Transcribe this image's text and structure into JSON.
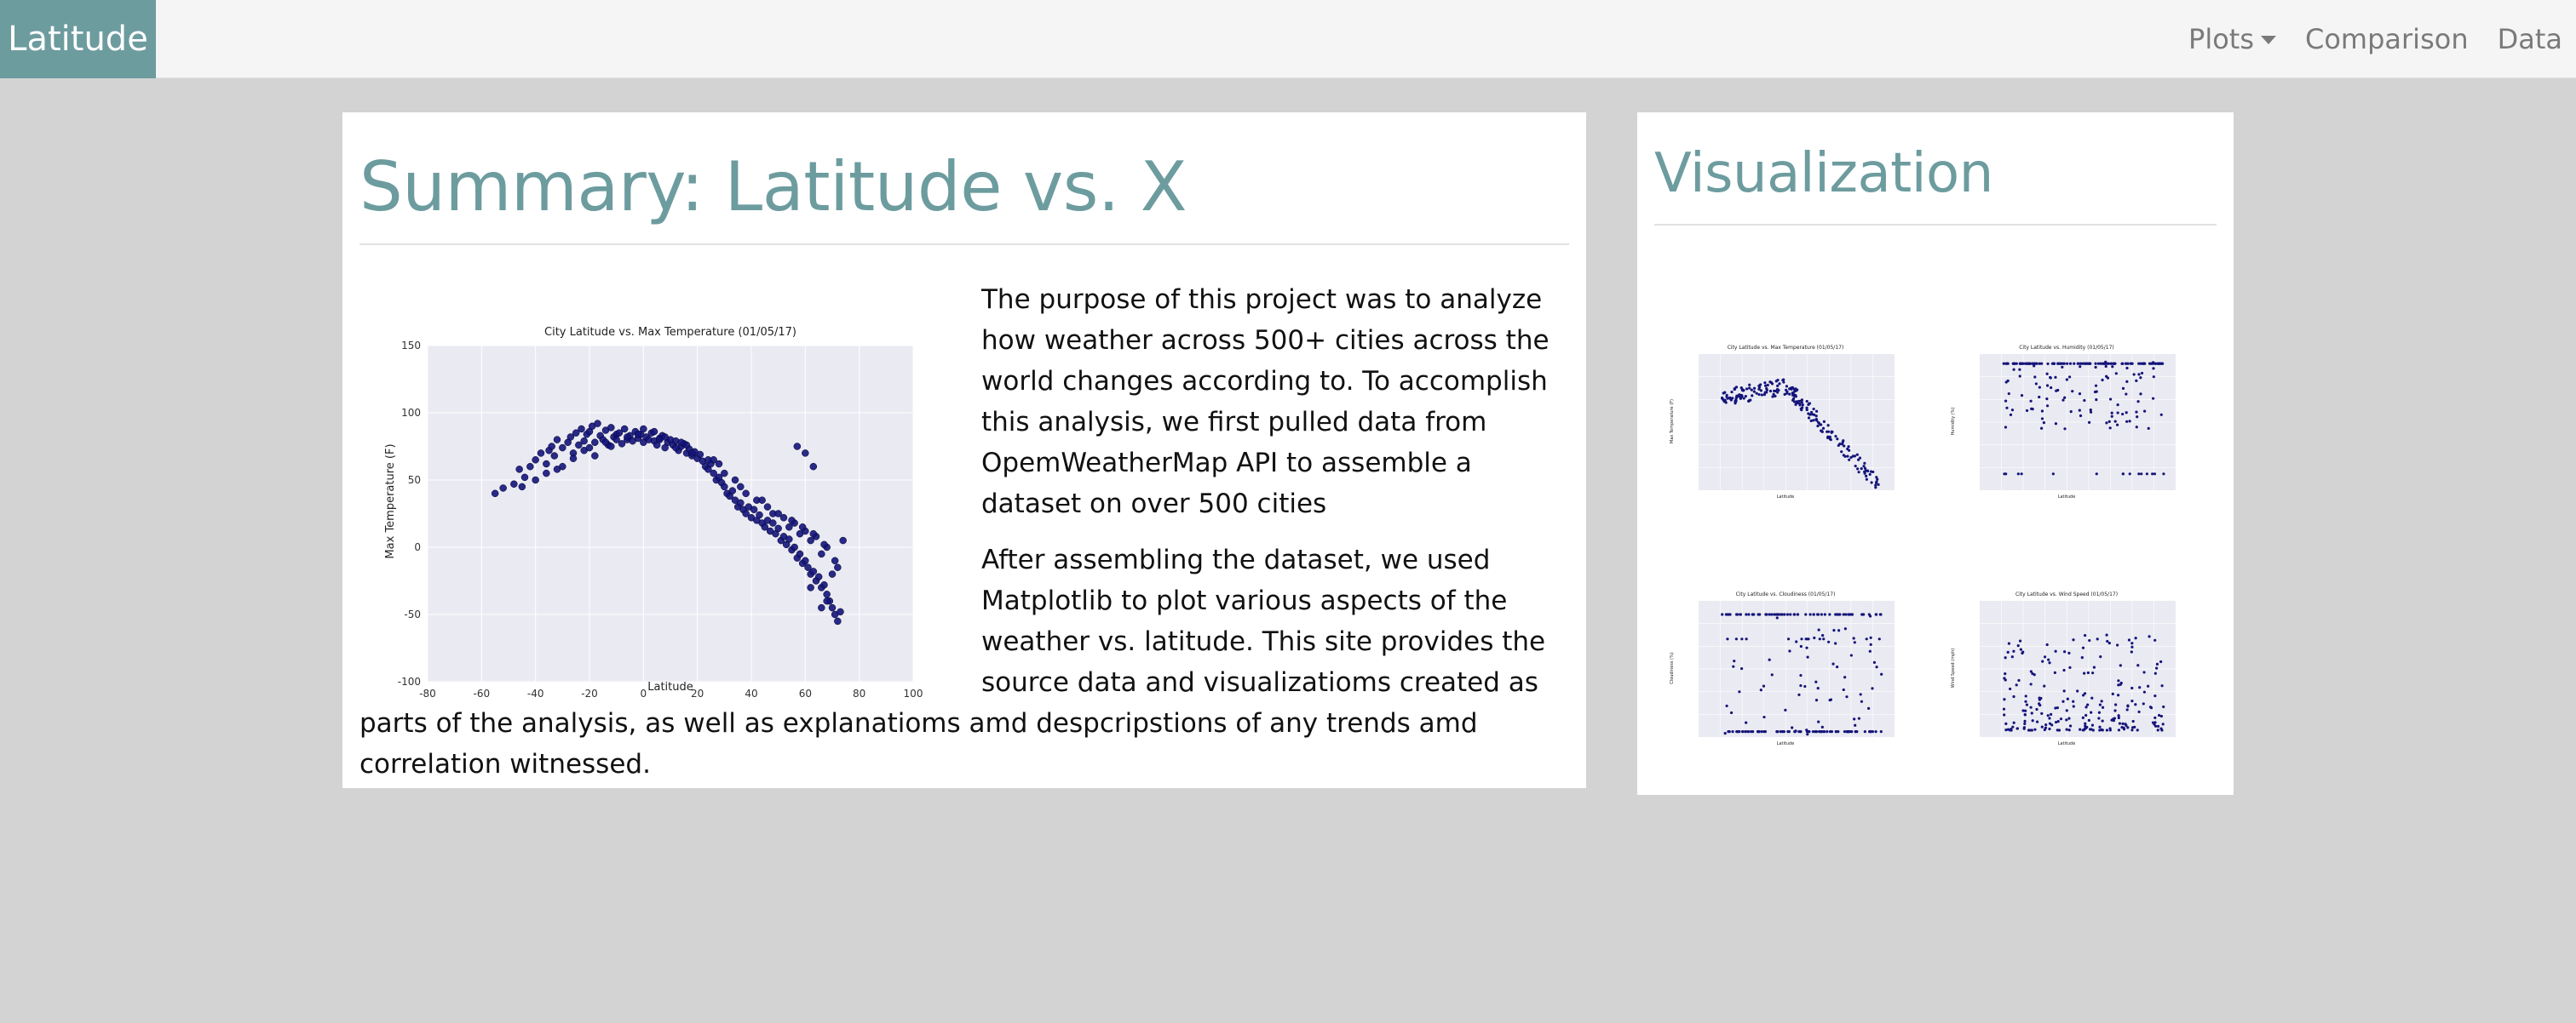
{
  "navbar": {
    "brand": "Latitude",
    "links": [
      {
        "label": "Plots",
        "dropdown": true
      },
      {
        "label": "Comparison",
        "dropdown": false
      },
      {
        "label": "Data",
        "dropdown": false
      }
    ]
  },
  "summary": {
    "title": "Summary: Latitude vs. X",
    "paragraphs": [
      "The purpose of this project was to analyze how weather across 500+ cities across the world changes according to. To accomplish this analysis, we first pulled data from OpemWeatherMap API to assemble a dataset on over 500 cities",
      "After assembling the dataset, we used Matplotlib to plot various aspects of the weather vs. latitude. This site provides the source data and visualizatioms created as parts of the analysis, as well as explanatioms amd despcripstions of any trends amd correlation witnessed."
    ]
  },
  "visualization": {
    "title": "Visualization"
  },
  "colors": {
    "accent": "#6d9c9f",
    "nav_bg": "#f5f5f5",
    "page_bg": "#d3d3d3",
    "point": "#14147a",
    "plot_bg": "#eaeaf2"
  },
  "chart_data": [
    {
      "type": "scatter",
      "title": "City Latitude vs. Max Temperature (01/05/17)",
      "xlabel": "Latitude",
      "ylabel": "Max Temperature (F)",
      "xlim": [
        -80,
        100
      ],
      "ylim": [
        -100,
        150
      ],
      "xticks": [
        -80,
        -60,
        -40,
        -20,
        0,
        20,
        40,
        60,
        80,
        100
      ],
      "yticks": [
        -100,
        -50,
        0,
        50,
        100,
        150
      ],
      "grid": true,
      "trend": "Temperatures peak (about 70–90 F) between roughly -20 and 20 latitude and fall steadily toward about -55 F near latitude 75.",
      "series": [
        {
          "x": [
            -55,
            -52,
            -48,
            -46,
            -44,
            -42,
            -40,
            -38,
            -36,
            -35,
            -34,
            -33,
            -32,
            -30,
            -28,
            -27,
            -26,
            -25,
            -24,
            -23,
            -22,
            -21,
            -20,
            -19,
            -18,
            -17,
            -16,
            -15,
            -14,
            -13,
            -12,
            -11,
            -10,
            -9,
            -8,
            -7,
            -6,
            -5,
            -4,
            -3,
            -2,
            -1,
            0,
            1,
            2,
            3,
            4,
            5,
            6,
            7,
            8,
            9,
            10,
            11,
            12,
            13,
            14,
            15,
            16,
            17,
            18,
            19,
            20,
            21,
            22,
            23,
            24,
            25,
            26,
            27,
            28,
            29,
            30,
            31,
            32,
            33,
            34,
            35,
            36,
            37,
            38,
            39,
            40,
            41,
            42,
            43,
            44,
            45,
            46,
            47,
            48,
            49,
            50,
            51,
            52,
            53,
            54,
            55,
            56,
            57,
            58,
            59,
            60,
            61,
            62,
            63,
            64,
            65,
            66,
            67,
            68,
            69,
            70,
            71,
            72,
            73,
            -36,
            -30,
            -22,
            -18,
            -12,
            -6,
            0,
            6,
            12,
            18,
            24,
            30,
            36,
            42,
            48,
            54,
            58,
            62,
            66,
            70,
            -40,
            -26,
            -14,
            -2,
            8,
            16,
            28,
            38,
            46,
            52,
            56,
            60,
            64,
            68,
            72,
            -45,
            -32,
            -20,
            -10,
            4,
            14,
            26,
            34,
            44,
            50,
            55,
            59,
            63,
            67,
            71,
            57,
            60,
            63,
            68,
            62,
            66,
            74
          ],
          "y": [
            40,
            44,
            47,
            58,
            52,
            60,
            65,
            70,
            62,
            72,
            75,
            68,
            80,
            74,
            78,
            82,
            70,
            85,
            76,
            88,
            79,
            84,
            86,
            90,
            78,
            92,
            83,
            80,
            87,
            76,
            89,
            82,
            84,
            85,
            77,
            88,
            80,
            83,
            79,
            86,
            81,
            84,
            78,
            82,
            80,
            85,
            79,
            76,
            81,
            83,
            74,
            78,
            80,
            76,
            79,
            72,
            75,
            77,
            70,
            73,
            68,
            71,
            66,
            69,
            64,
            60,
            58,
            62,
            55,
            50,
            52,
            48,
            45,
            40,
            38,
            42,
            35,
            30,
            33,
            28,
            25,
            30,
            22,
            28,
            20,
            24,
            18,
            15,
            20,
            12,
            18,
            10,
            14,
            5,
            8,
            2,
            6,
            -2,
            0,
            -8,
            -5,
            -12,
            -10,
            -15,
            -20,
            -18,
            -25,
            -22,
            -30,
            -28,
            -35,
            -40,
            -45,
            -50,
            -55,
            -48,
            55,
            60,
            72,
            68,
            75,
            82,
            88,
            80,
            74,
            70,
            65,
            55,
            45,
            35,
            25,
            15,
            10,
            5,
            -5,
            -20,
            50,
            66,
            78,
            84,
            82,
            76,
            62,
            40,
            30,
            22,
            18,
            12,
            8,
            0,
            -15,
            45,
            58,
            74,
            80,
            86,
            78,
            65,
            50,
            35,
            25,
            20,
            15,
            10,
            2,
            -10,
            75,
            70,
            60,
            -40,
            -30,
            -45,
            5
          ]
        }
      ]
    },
    {
      "type": "scatter",
      "title": "City Latitude vs. Max Temperature (01/05/17)",
      "xlabel": "Latitude",
      "ylabel": "Max Temperature (F)"
    },
    {
      "type": "scatter",
      "title": "City Latitude vs. Humidity (01/05/17)",
      "xlabel": "Latitude",
      "ylabel": "Humidity (%)"
    },
    {
      "type": "scatter",
      "title": "City Latitude vs. Cloudiness (01/05/17)",
      "xlabel": "Latitude",
      "ylabel": "Cloudiness (%)"
    },
    {
      "type": "scatter",
      "title": "City Latitude vs. Wind Speed (01/05/17)",
      "xlabel": "Latitude",
      "ylabel": "Wind Speed (mph)"
    }
  ]
}
